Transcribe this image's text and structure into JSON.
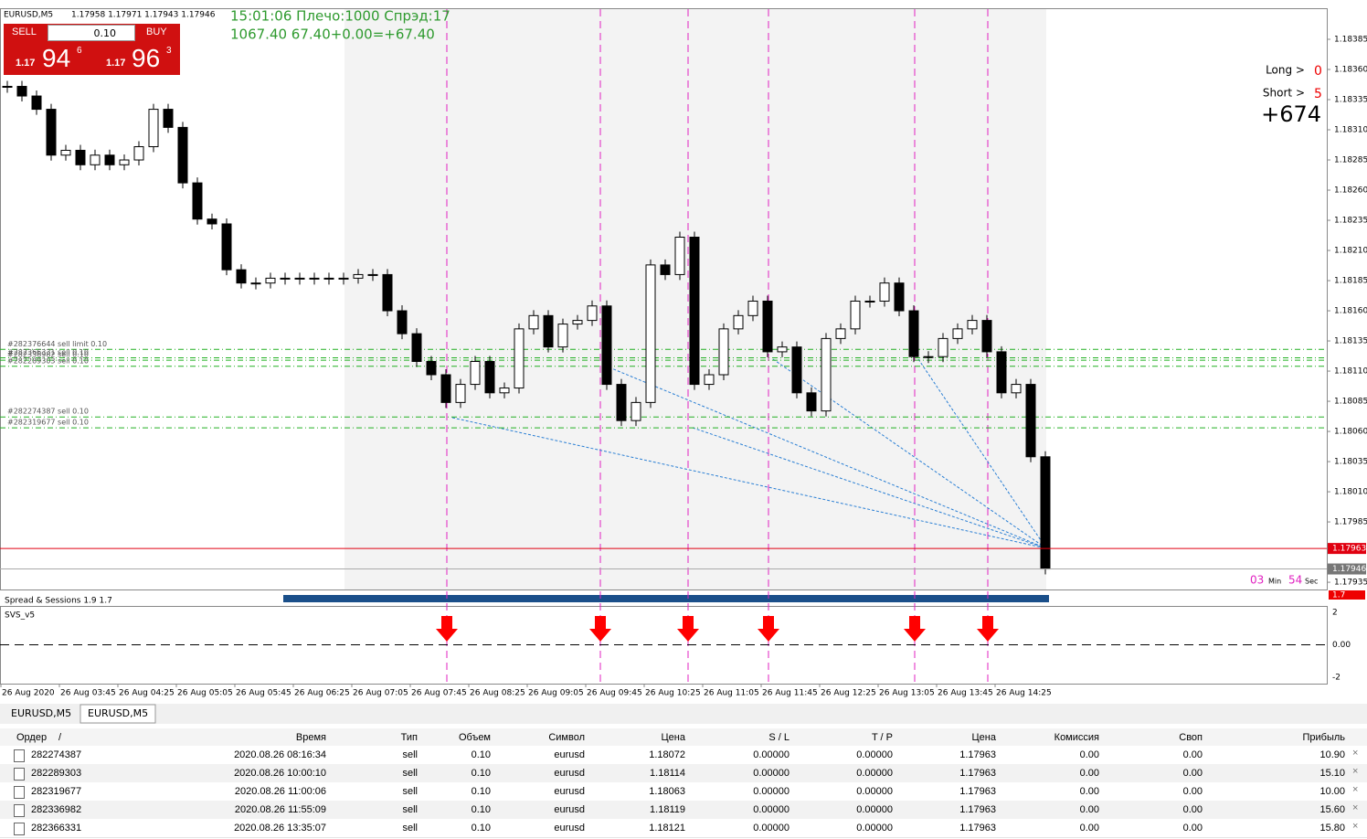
{
  "header": {
    "symbol": "EURUSD,M5",
    "ohlc": "1.17958 1.17971 1.17943 1.17946"
  },
  "trade_panel": {
    "sell": "SELL",
    "buy": "BUY",
    "lots": "0.10",
    "bid_big": "1.17",
    "bid_pips": "94",
    "bid_frac": "6",
    "ask_big": "1.17",
    "ask_pips": "96",
    "ask_frac": "3"
  },
  "info": {
    "line1": "15:01:06 Плечо:1000 Спрэд:17",
    "line2": "1067.40   67.40+0.00=+67.40",
    "long_label": "Long >",
    "long_value": "0",
    "short_label": "Short >",
    "short_value": "5",
    "total": "+674",
    "timer_min": "03",
    "min_label": "Min",
    "timer_sec": "54",
    "sec_label": "Sec"
  },
  "chart_data": {
    "type": "candlestick",
    "closes": [
      1.18346,
      1.18338,
      1.18327,
      1.18289,
      1.18293,
      1.18281,
      1.18289,
      1.18281,
      1.18285,
      1.18296,
      1.18327,
      1.18312,
      1.18266,
      1.18236,
      1.18232,
      1.18194,
      1.18183,
      1.18183,
      1.18187,
      1.18187,
      1.18187,
      1.18187,
      1.18187,
      1.18187,
      1.1819,
      1.1819,
      1.1816,
      1.18141,
      1.18118,
      1.18107,
      1.18084,
      1.18099,
      1.18118,
      1.18092,
      1.18096,
      1.18145,
      1.18156,
      1.1813,
      1.18149,
      1.18152,
      1.18164,
      1.18099,
      1.18069,
      1.18084,
      1.18198,
      1.1819,
      1.18221,
      1.18099,
      1.18107,
      1.18145,
      1.18156,
      1.18168,
      1.18126,
      1.1813,
      1.18092,
      1.18077,
      1.18137,
      1.18145,
      1.18168,
      1.18168,
      1.18183,
      1.1816,
      1.18122,
      1.18122,
      1.18137,
      1.18145,
      1.18152,
      1.18126,
      1.18092,
      1.18099,
      1.18039,
      1.17946
    ],
    "ylim": [
      1.17929,
      1.1841
    ],
    "yticks": [
      1.18385,
      {
        "value": 1.1836,
        "label": "1.18360"
      },
      1.18335,
      {
        "value": 1.1831,
        "label": "1.18310"
      },
      1.18285,
      {
        "value": 1.1826,
        "label": "1.18260"
      },
      1.18235,
      {
        "value": 1.1821,
        "label": "1.18210"
      },
      1.18185,
      {
        "value": 1.1816,
        "label": "1.18160"
      },
      1.18135,
      {
        "value": 1.1811,
        "label": "1.18110"
      },
      1.18085,
      {
        "value": 1.1806,
        "label": "1.18060"
      },
      1.18035,
      {
        "value": 1.1801,
        "label": "1.18010"
      },
      1.17985,
      1.17935
    ],
    "bid_line": 1.17963,
    "last_line": 1.17946,
    "x_labels": [
      "26 Aug 2020",
      "26 Aug 03:45",
      "26 Aug 04:25",
      "26 Aug 05:05",
      "26 Aug 05:45",
      "26 Aug 06:25",
      "26 Aug 07:05",
      "26 Aug 07:45",
      "26 Aug 08:25",
      "26 Aug 09:05",
      "26 Aug 09:45",
      "26 Aug 10:25",
      "26 Aug 11:05",
      "26 Aug 11:45",
      "26 Aug 12:25",
      "26 Aug 13:05",
      "26 Aug 13:45",
      "26 Aug 14:25"
    ],
    "order_lines": [
      {
        "label": "#282376644 sell limit 0.10",
        "price": 1.18128
      },
      {
        "label": "#282366331 sell 0.10",
        "price": 1.18121
      },
      {
        "label": "#282336982 sell 0.10",
        "price": 1.18119
      },
      {
        "label": "#282289303 sell 0.10",
        "price": 1.18114
      },
      {
        "label": "#282274387 sell 0.10",
        "price": 1.18072
      },
      {
        "label": "#282319677 sell 0.10",
        "price": 1.18063
      }
    ]
  },
  "indicator": {
    "name": "Spread & Sessions 1.9 1.7",
    "value": "1.7"
  },
  "svs": {
    "name": "SVS_v5",
    "ylim": [
      -2.4,
      2.4
    ],
    "yticks": [
      2,
      {
        "value": 0,
        "label": "0.00"
      },
      -2
    ]
  },
  "tabs": [
    "EURUSD,M5",
    "EURUSD,M5"
  ],
  "table": {
    "headers": [
      "Ордер",
      "/",
      "Время",
      "Тип",
      "Объем",
      "Символ",
      "Цена",
      "S / L",
      "T / P",
      "Цена",
      "Комиссия",
      "Своп",
      "Прибыль"
    ],
    "rows": [
      [
        "282274387",
        "2020.08.26 08:16:34",
        "sell",
        "0.10",
        "eurusd",
        "1.18072",
        "0.00000",
        "0.00000",
        "1.17963",
        "0.00",
        "0.00",
        "10.90"
      ],
      [
        "282289303",
        "2020.08.26 10:00:10",
        "sell",
        "0.10",
        "eurusd",
        "1.18114",
        "0.00000",
        "0.00000",
        "1.17963",
        "0.00",
        "0.00",
        "15.10"
      ],
      [
        "282319677",
        "2020.08.26 11:00:06",
        "sell",
        "0.10",
        "eurusd",
        "1.18063",
        "0.00000",
        "0.00000",
        "1.17963",
        "0.00",
        "0.00",
        "10.00"
      ],
      [
        "282336982",
        "2020.08.26 11:55:09",
        "sell",
        "0.10",
        "eurusd",
        "1.18119",
        "0.00000",
        "0.00000",
        "1.17963",
        "0.00",
        "0.00",
        "15.60"
      ],
      [
        "282366331",
        "2020.08.26 13:35:07",
        "sell",
        "0.10",
        "eurusd",
        "1.18121",
        "0.00000",
        "0.00000",
        "1.17963",
        "0.00",
        "0.00",
        "15.80"
      ]
    ]
  }
}
